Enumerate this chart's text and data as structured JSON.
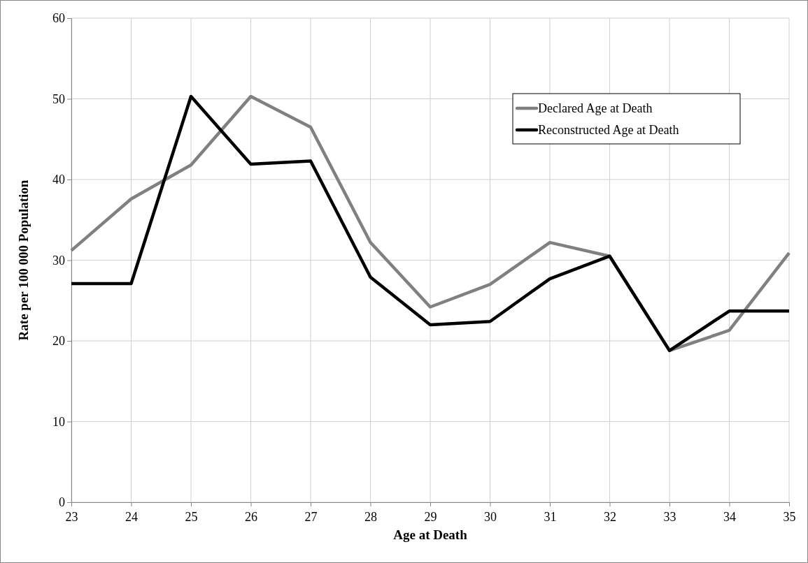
{
  "chart_data": {
    "type": "line",
    "xlabel": "Age at Death",
    "ylabel": "Rate per 100 000 Population",
    "x": [
      23,
      24,
      25,
      26,
      27,
      28,
      29,
      30,
      31,
      32,
      33,
      34,
      35
    ],
    "xlim": [
      23,
      35
    ],
    "xticks": [
      23,
      24,
      25,
      26,
      27,
      28,
      29,
      30,
      31,
      32,
      33,
      34,
      35
    ],
    "ylim": [
      0,
      60
    ],
    "yticks": [
      0,
      10,
      20,
      30,
      40,
      50,
      60
    ],
    "grid": true,
    "legend": "top right",
    "marker": "none",
    "line_style": "solid",
    "series": [
      {
        "name": "Declared Age at Death",
        "color": "#808080",
        "values": [
          31.2,
          37.6,
          41.8,
          50.3,
          46.5,
          32.2,
          24.2,
          27.0,
          32.2,
          30.5,
          18.8,
          21.3,
          30.9
        ]
      },
      {
        "name": "Reconstructed Age at Death",
        "color": "#000000",
        "values": [
          27.1,
          27.1,
          50.3,
          41.9,
          42.3,
          27.9,
          22.0,
          22.4,
          27.7,
          30.5,
          18.8,
          23.7,
          23.7
        ]
      }
    ]
  }
}
